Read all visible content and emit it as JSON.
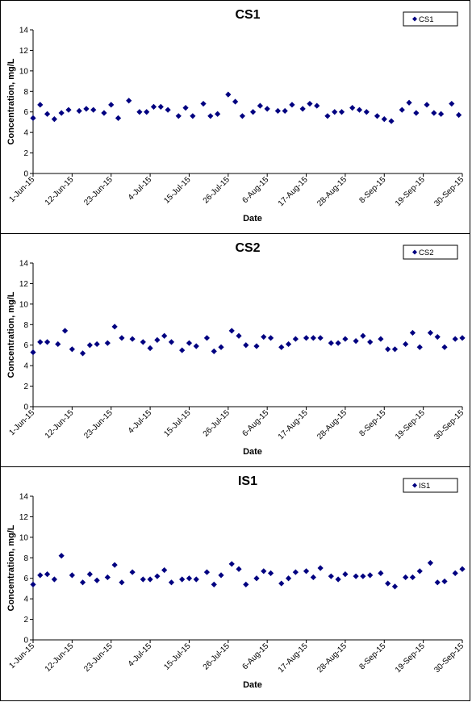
{
  "chart_data": [
    {
      "type": "scatter",
      "title": "CS1",
      "xlabel": "Date",
      "ylabel": "Concentration, mg/L",
      "ylim": [
        0,
        14
      ],
      "yticks": [
        0,
        2,
        4,
        6,
        8,
        10,
        12,
        14
      ],
      "xlim": [
        "2015-06-01",
        "2015-09-30"
      ],
      "xticks": [
        "1-Jun-15",
        "12-Jun-15",
        "23-Jun-15",
        "4-Jul-15",
        "15-Jul-15",
        "26-Jul-15",
        "6-Aug-15",
        "17-Aug-15",
        "28-Aug-15",
        "8-Sep-15",
        "19-Sep-15",
        "30-Sep-15"
      ],
      "grid": false,
      "legend_position": "top-right",
      "series": [
        {
          "name": "CS1",
          "color": "#000080",
          "marker": "diamond",
          "points": [
            [
              "2015-06-01",
              5.4
            ],
            [
              "2015-06-03",
              6.7
            ],
            [
              "2015-06-05",
              5.8
            ],
            [
              "2015-06-07",
              5.3
            ],
            [
              "2015-06-09",
              5.9
            ],
            [
              "2015-06-11",
              6.2
            ],
            [
              "2015-06-14",
              6.1
            ],
            [
              "2015-06-16",
              6.3
            ],
            [
              "2015-06-18",
              6.2
            ],
            [
              "2015-06-21",
              5.9
            ],
            [
              "2015-06-23",
              6.7
            ],
            [
              "2015-06-25",
              5.4
            ],
            [
              "2015-06-28",
              7.1
            ],
            [
              "2015-07-01",
              6.0
            ],
            [
              "2015-07-03",
              6.0
            ],
            [
              "2015-07-05",
              6.5
            ],
            [
              "2015-07-07",
              6.5
            ],
            [
              "2015-07-09",
              6.2
            ],
            [
              "2015-07-12",
              5.6
            ],
            [
              "2015-07-14",
              6.4
            ],
            [
              "2015-07-16",
              5.6
            ],
            [
              "2015-07-19",
              6.8
            ],
            [
              "2015-07-21",
              5.6
            ],
            [
              "2015-07-23",
              5.8
            ],
            [
              "2015-07-26",
              7.7
            ],
            [
              "2015-07-28",
              7.0
            ],
            [
              "2015-07-30",
              5.6
            ],
            [
              "2015-08-02",
              6.0
            ],
            [
              "2015-08-04",
              6.6
            ],
            [
              "2015-08-06",
              6.3
            ],
            [
              "2015-08-09",
              6.1
            ],
            [
              "2015-08-11",
              6.1
            ],
            [
              "2015-08-13",
              6.7
            ],
            [
              "2015-08-16",
              6.3
            ],
            [
              "2015-08-18",
              6.8
            ],
            [
              "2015-08-20",
              6.6
            ],
            [
              "2015-08-23",
              5.6
            ],
            [
              "2015-08-25",
              6.0
            ],
            [
              "2015-08-27",
              6.0
            ],
            [
              "2015-08-30",
              6.4
            ],
            [
              "2015-09-01",
              6.2
            ],
            [
              "2015-09-03",
              6.0
            ],
            [
              "2015-09-06",
              5.6
            ],
            [
              "2015-09-08",
              5.3
            ],
            [
              "2015-09-10",
              5.1
            ],
            [
              "2015-09-13",
              6.2
            ],
            [
              "2015-09-15",
              6.9
            ],
            [
              "2015-09-17",
              5.9
            ],
            [
              "2015-09-20",
              6.7
            ],
            [
              "2015-09-22",
              5.9
            ],
            [
              "2015-09-24",
              5.8
            ],
            [
              "2015-09-27",
              6.8
            ],
            [
              "2015-09-29",
              5.7
            ]
          ]
        }
      ]
    },
    {
      "type": "scatter",
      "title": "CS2",
      "xlabel": "Date",
      "ylabel": "Concentration, mg/L",
      "ylim": [
        0,
        14
      ],
      "yticks": [
        0,
        2,
        4,
        6,
        8,
        10,
        12,
        14
      ],
      "xlim": [
        "2015-06-01",
        "2015-09-30"
      ],
      "xticks": [
        "1-Jun-15",
        "12-Jun-15",
        "23-Jun-15",
        "4-Jul-15",
        "15-Jul-15",
        "26-Jul-15",
        "6-Aug-15",
        "17-Aug-15",
        "28-Aug-15",
        "8-Sep-15",
        "19-Sep-15",
        "30-Sep-15"
      ],
      "grid": false,
      "legend_position": "top-right",
      "series": [
        {
          "name": "CS2",
          "color": "#000080",
          "marker": "diamond",
          "points": [
            [
              "2015-06-01",
              5.3
            ],
            [
              "2015-06-03",
              6.3
            ],
            [
              "2015-06-05",
              6.3
            ],
            [
              "2015-06-08",
              6.1
            ],
            [
              "2015-06-10",
              7.4
            ],
            [
              "2015-06-12",
              5.6
            ],
            [
              "2015-06-15",
              5.2
            ],
            [
              "2015-06-17",
              6.0
            ],
            [
              "2015-06-19",
              6.1
            ],
            [
              "2015-06-22",
              6.2
            ],
            [
              "2015-06-24",
              7.8
            ],
            [
              "2015-06-26",
              6.7
            ],
            [
              "2015-06-29",
              6.6
            ],
            [
              "2015-07-02",
              6.3
            ],
            [
              "2015-07-04",
              5.7
            ],
            [
              "2015-07-06",
              6.5
            ],
            [
              "2015-07-08",
              6.9
            ],
            [
              "2015-07-10",
              6.3
            ],
            [
              "2015-07-13",
              5.5
            ],
            [
              "2015-07-15",
              6.2
            ],
            [
              "2015-07-17",
              5.9
            ],
            [
              "2015-07-20",
              6.7
            ],
            [
              "2015-07-22",
              5.4
            ],
            [
              "2015-07-24",
              5.8
            ],
            [
              "2015-07-27",
              7.4
            ],
            [
              "2015-07-29",
              6.9
            ],
            [
              "2015-07-31",
              6.0
            ],
            [
              "2015-08-03",
              5.9
            ],
            [
              "2015-08-05",
              6.8
            ],
            [
              "2015-08-07",
              6.7
            ],
            [
              "2015-08-10",
              5.8
            ],
            [
              "2015-08-12",
              6.1
            ],
            [
              "2015-08-14",
              6.6
            ],
            [
              "2015-08-17",
              6.7
            ],
            [
              "2015-08-19",
              6.7
            ],
            [
              "2015-08-21",
              6.7
            ],
            [
              "2015-08-24",
              6.2
            ],
            [
              "2015-08-26",
              6.2
            ],
            [
              "2015-08-28",
              6.6
            ],
            [
              "2015-08-31",
              6.4
            ],
            [
              "2015-09-02",
              6.9
            ],
            [
              "2015-09-04",
              6.3
            ],
            [
              "2015-09-07",
              6.6
            ],
            [
              "2015-09-09",
              5.6
            ],
            [
              "2015-09-11",
              5.6
            ],
            [
              "2015-09-14",
              6.1
            ],
            [
              "2015-09-16",
              7.2
            ],
            [
              "2015-09-18",
              5.8
            ],
            [
              "2015-09-21",
              7.2
            ],
            [
              "2015-09-23",
              6.8
            ],
            [
              "2015-09-25",
              5.8
            ],
            [
              "2015-09-28",
              6.6
            ],
            [
              "2015-09-30",
              6.7
            ]
          ]
        }
      ]
    },
    {
      "type": "scatter",
      "title": "IS1",
      "xlabel": "Date",
      "ylabel": "Concentration, mg/L",
      "ylim": [
        0,
        14
      ],
      "yticks": [
        0,
        2,
        4,
        6,
        8,
        10,
        12,
        14
      ],
      "xlim": [
        "2015-06-01",
        "2015-09-30"
      ],
      "xticks": [
        "1-Jun-15",
        "12-Jun-15",
        "23-Jun-15",
        "4-Jul-15",
        "15-Jul-15",
        "26-Jul-15",
        "6-Aug-15",
        "17-Aug-15",
        "28-Aug-15",
        "8-Sep-15",
        "19-Sep-15",
        "30-Sep-15"
      ],
      "grid": false,
      "legend_position": "top-right",
      "series": [
        {
          "name": "IS1",
          "color": "#000080",
          "marker": "diamond",
          "points": [
            [
              "2015-06-01",
              5.4
            ],
            [
              "2015-06-03",
              6.3
            ],
            [
              "2015-06-05",
              6.4
            ],
            [
              "2015-06-07",
              5.9
            ],
            [
              "2015-06-09",
              8.2
            ],
            [
              "2015-06-12",
              6.3
            ],
            [
              "2015-06-15",
              5.6
            ],
            [
              "2015-06-17",
              6.4
            ],
            [
              "2015-06-19",
              5.8
            ],
            [
              "2015-06-22",
              6.1
            ],
            [
              "2015-06-24",
              7.3
            ],
            [
              "2015-06-26",
              5.6
            ],
            [
              "2015-06-29",
              6.6
            ],
            [
              "2015-07-02",
              5.9
            ],
            [
              "2015-07-04",
              5.9
            ],
            [
              "2015-07-06",
              6.2
            ],
            [
              "2015-07-08",
              6.8
            ],
            [
              "2015-07-10",
              5.6
            ],
            [
              "2015-07-13",
              5.9
            ],
            [
              "2015-07-15",
              6.0
            ],
            [
              "2015-07-17",
              5.9
            ],
            [
              "2015-07-20",
              6.6
            ],
            [
              "2015-07-22",
              5.4
            ],
            [
              "2015-07-24",
              6.3
            ],
            [
              "2015-07-27",
              7.4
            ],
            [
              "2015-07-29",
              6.9
            ],
            [
              "2015-07-31",
              5.4
            ],
            [
              "2015-08-03",
              6.0
            ],
            [
              "2015-08-05",
              6.7
            ],
            [
              "2015-08-07",
              6.5
            ],
            [
              "2015-08-10",
              5.5
            ],
            [
              "2015-08-12",
              6.0
            ],
            [
              "2015-08-14",
              6.6
            ],
            [
              "2015-08-17",
              6.7
            ],
            [
              "2015-08-19",
              6.1
            ],
            [
              "2015-08-21",
              7.0
            ],
            [
              "2015-08-24",
              6.2
            ],
            [
              "2015-08-26",
              5.9
            ],
            [
              "2015-08-28",
              6.4
            ],
            [
              "2015-08-31",
              6.2
            ],
            [
              "2015-09-02",
              6.2
            ],
            [
              "2015-09-04",
              6.3
            ],
            [
              "2015-09-07",
              6.5
            ],
            [
              "2015-09-09",
              5.5
            ],
            [
              "2015-09-11",
              5.2
            ],
            [
              "2015-09-14",
              6.1
            ],
            [
              "2015-09-16",
              6.1
            ],
            [
              "2015-09-18",
              6.7
            ],
            [
              "2015-09-21",
              7.5
            ],
            [
              "2015-09-23",
              5.6
            ],
            [
              "2015-09-25",
              5.7
            ],
            [
              "2015-09-28",
              6.5
            ],
            [
              "2015-09-30",
              6.9
            ]
          ]
        }
      ]
    }
  ]
}
